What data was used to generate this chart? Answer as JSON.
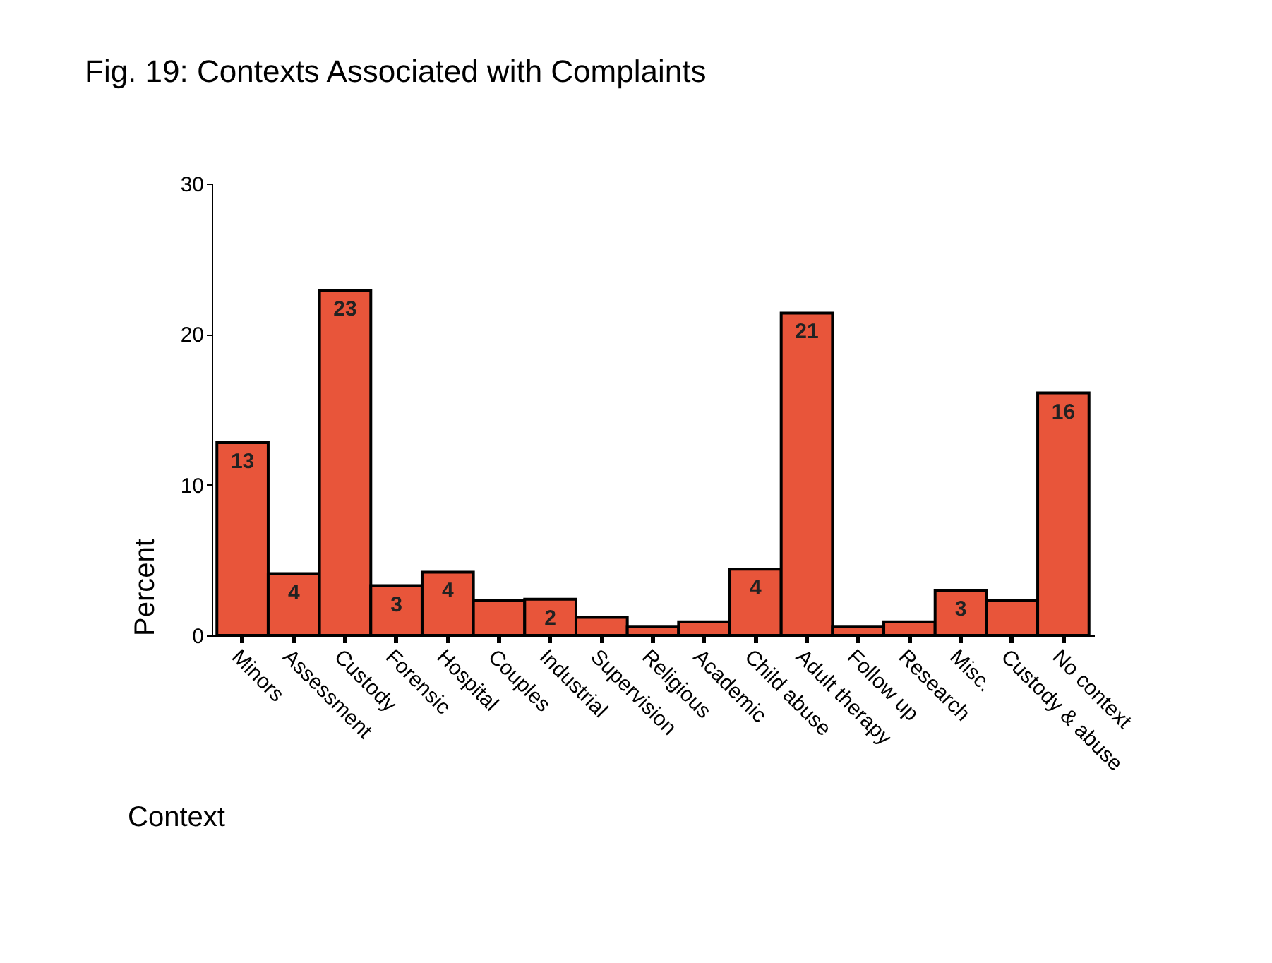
{
  "chart_data": {
    "type": "bar",
    "title": "Fig.  19: Contexts Associated with Complaints",
    "xlabel": "Context",
    "ylabel": "Percent",
    "categories": [
      "Minors",
      "Assessment",
      "Custody",
      "Forensic",
      "Hospital",
      "Couples",
      "Industrial",
      "Supervision",
      "Religious",
      "Academic",
      "Child abuse",
      "Adult therapy",
      "Follow up",
      "Research",
      "Misc.",
      "Custody & abuse",
      "No context"
    ],
    "values": [
      12.8,
      4.1,
      22.9,
      3.3,
      4.2,
      2.3,
      2.4,
      1.2,
      0.6,
      0.9,
      4.4,
      21.4,
      0.6,
      0.9,
      3.0,
      2.3,
      16.1
    ],
    "value_labels": [
      "13",
      "4",
      "23",
      "3",
      "4",
      null,
      "2",
      null,
      null,
      null,
      "4",
      "21",
      null,
      null,
      "3",
      null,
      "16"
    ],
    "color": "#e8553a",
    "ylim": [
      0,
      30
    ],
    "yticks": [
      0,
      10,
      20,
      30
    ],
    "grid": false
  }
}
